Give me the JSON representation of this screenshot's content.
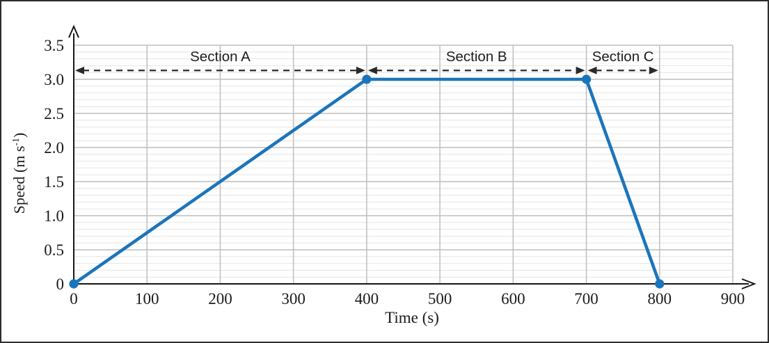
{
  "figure": {
    "background": "#ffffff",
    "border_color": "#2d2d2d"
  },
  "chart_data": {
    "type": "line",
    "title": "",
    "xlabel": "Time (s)",
    "ylabel": "Speed (m s⁻¹)",
    "ylabel_parts": {
      "main": "Speed (m s",
      "sup": "-1",
      "end": ")"
    },
    "x": [
      0,
      400,
      700,
      800
    ],
    "y": [
      0,
      3,
      3,
      0
    ],
    "marker_points": [
      [
        0,
        0
      ],
      [
        400,
        3
      ],
      [
        700,
        3
      ],
      [
        800,
        0
      ]
    ],
    "xlim": [
      0,
      900
    ],
    "ylim": [
      0,
      3.5
    ],
    "x_ticks": [
      0,
      100,
      200,
      300,
      400,
      500,
      600,
      700,
      800,
      900
    ],
    "x_tick_labels": [
      "0",
      "100",
      "200",
      "300",
      "400",
      "500",
      "600",
      "700",
      "800",
      "900"
    ],
    "y_ticks": [
      {
        "v": 0.0,
        "label": "0"
      },
      {
        "v": 0.5,
        "label": "0.5"
      },
      {
        "v": 1.0,
        "label": "1.0"
      },
      {
        "v": 1.5,
        "label": "1.5"
      },
      {
        "v": 2.0,
        "label": "2.0"
      },
      {
        "v": 2.5,
        "label": "2.5"
      },
      {
        "v": 3.0,
        "label": "3.0"
      },
      {
        "v": 3.5,
        "label": "3.5"
      }
    ],
    "minor_y_step": 0.1,
    "grid": true,
    "legend": null,
    "line_color": "#1b75bc",
    "marker_color": "#1b75bc",
    "axis_color": "#161616",
    "grid_minor_color": "#e4e4e4",
    "grid_major_color": "#bdbdbd",
    "grid_vertical_color": "#c2c2c2",
    "annotation_color": "#2a2a2a",
    "text_color": "#1a1a1a",
    "annotation_y": 3.13,
    "sections": [
      {
        "label": "Section A",
        "from": 0,
        "to": 400
      },
      {
        "label": "Section B",
        "from": 400,
        "to": 700
      },
      {
        "label": "Section C",
        "from": 700,
        "to": 800
      }
    ]
  }
}
